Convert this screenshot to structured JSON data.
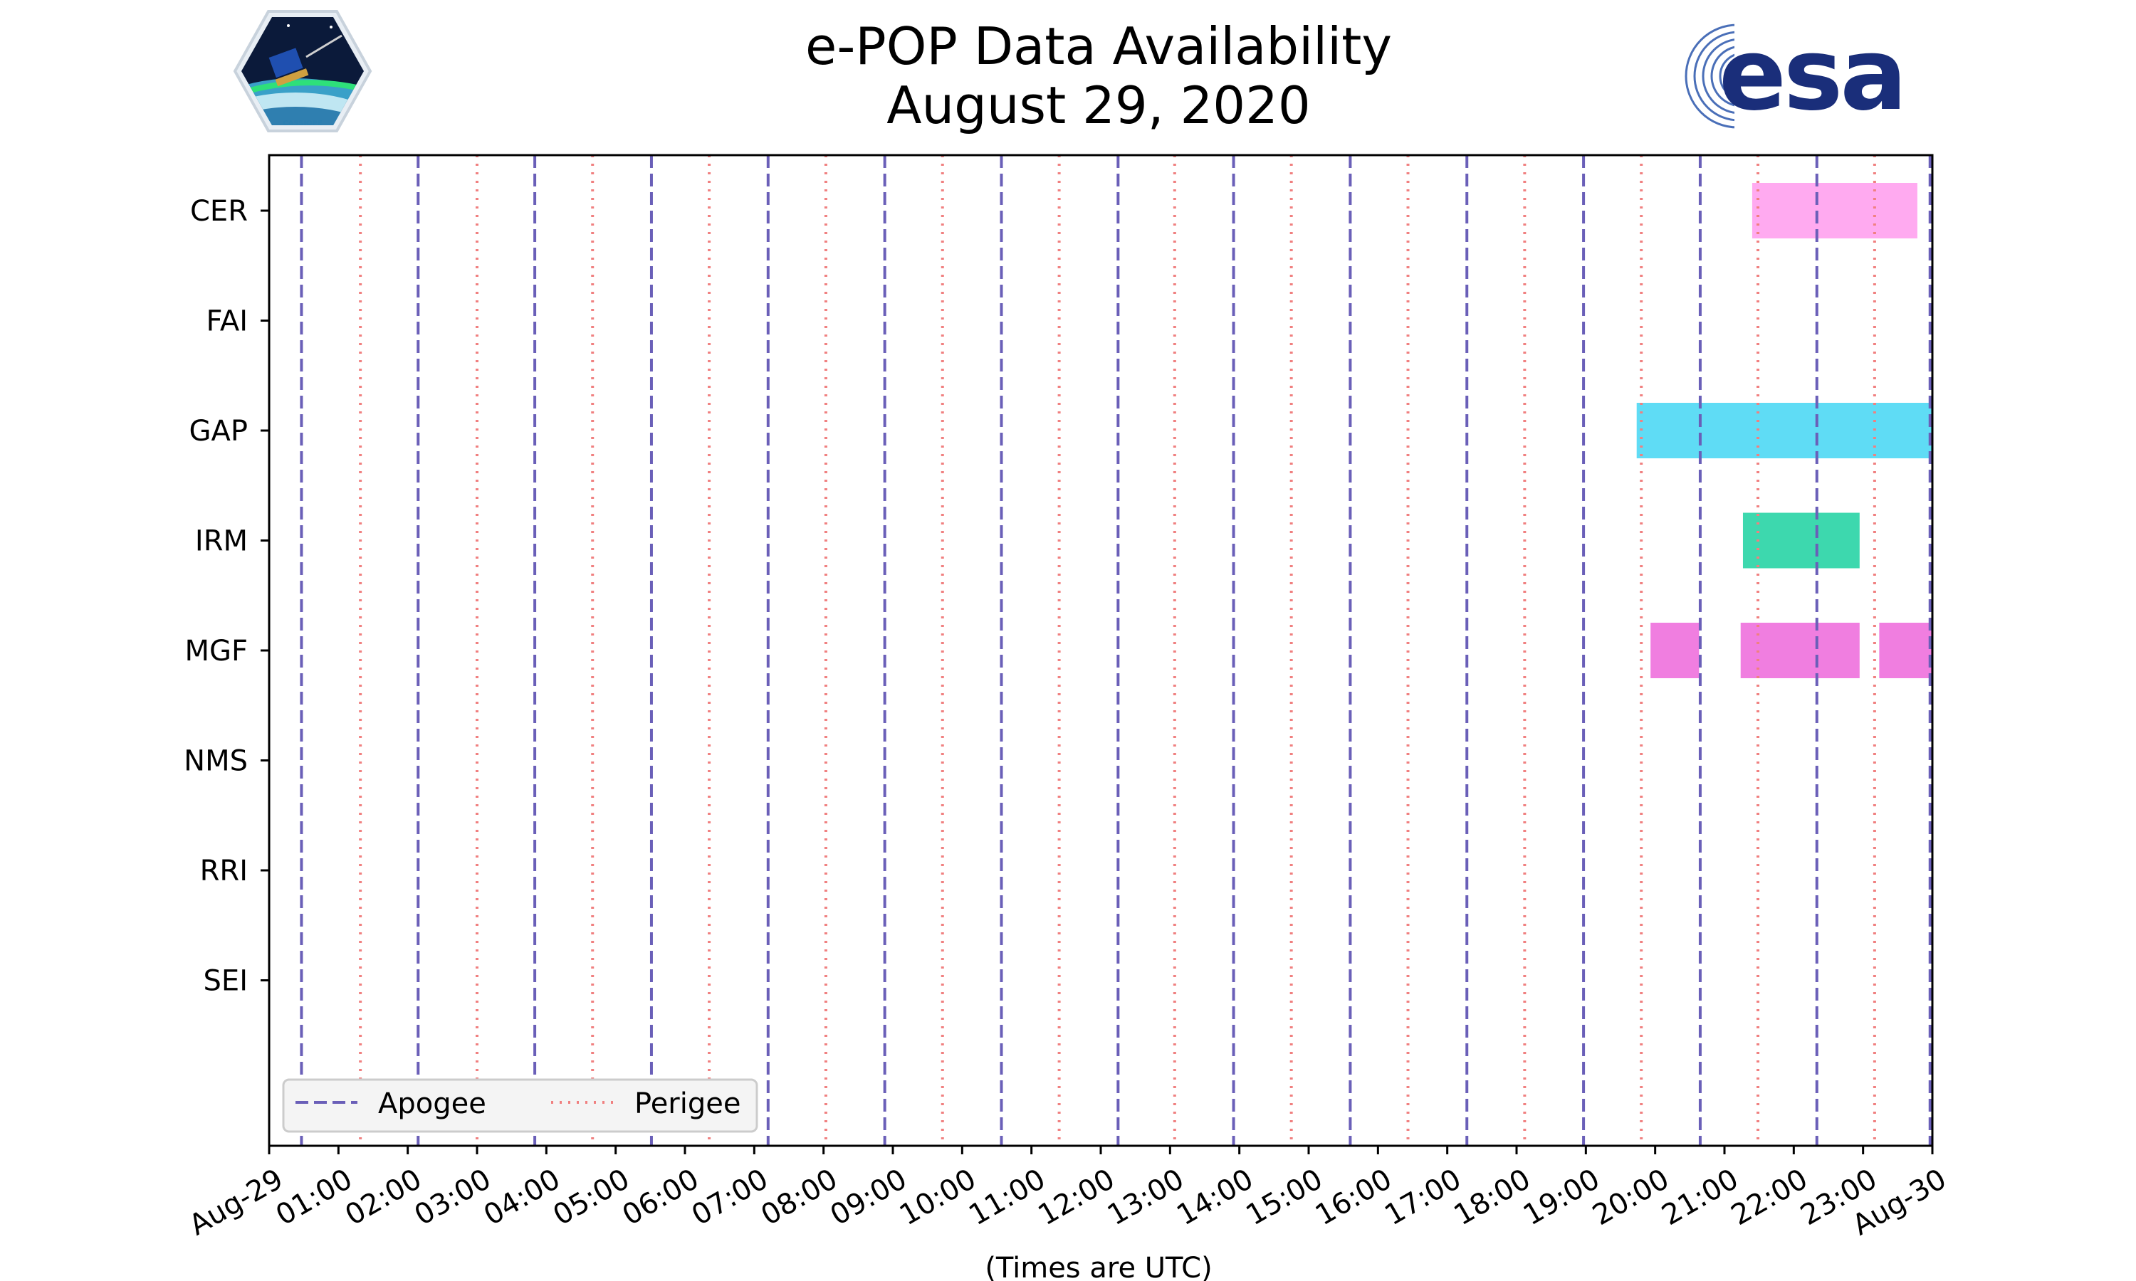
{
  "logos": {
    "left": {
      "name": "CASSIOPE",
      "label": "CASSIOPE"
    },
    "right": {
      "name": "esa",
      "label": "esa",
      "color": "#1a2e7a"
    }
  },
  "chart_data": {
    "type": "timeline",
    "title": "e-POP Data Availability",
    "subtitle": "August 29, 2020",
    "xlabel": "(Times are UTC)",
    "xlim_hours": [
      0,
      24
    ],
    "x_tick_labels": [
      "Aug-29",
      "01:00",
      "02:00",
      "03:00",
      "04:00",
      "05:00",
      "06:00",
      "07:00",
      "08:00",
      "09:00",
      "10:00",
      "11:00",
      "12:00",
      "13:00",
      "14:00",
      "15:00",
      "16:00",
      "17:00",
      "18:00",
      "19:00",
      "20:00",
      "21:00",
      "22:00",
      "23:00",
      "Aug-30"
    ],
    "categories": [
      "CER",
      "FAI",
      "GAP",
      "IRM",
      "MGF",
      "NMS",
      "RRI",
      "SEI"
    ],
    "grid": false,
    "legend": {
      "location": "lower-left",
      "entries": [
        {
          "label": "Apogee",
          "style": "dashed",
          "color": "#6a5fb8"
        },
        {
          "label": "Perigee",
          "style": "dotted",
          "color": "#f08080"
        }
      ]
    },
    "apogee_times": [
      "00:28",
      "02:09",
      "03:50",
      "05:31",
      "07:12",
      "08:53",
      "10:34",
      "12:15",
      "13:55",
      "15:36",
      "17:17",
      "18:58",
      "20:39",
      "22:20",
      "23:58"
    ],
    "perigee_times": [
      "01:19",
      "03:00",
      "04:40",
      "06:21",
      "08:02",
      "09:43",
      "11:24",
      "13:04",
      "14:45",
      "16:26",
      "18:07",
      "19:48",
      "21:29",
      "23:10"
    ],
    "series": [
      {
        "instrument": "CER",
        "color": "#ffaaf0",
        "intervals": [
          [
            "21:24",
            "23:47"
          ]
        ]
      },
      {
        "instrument": "FAI",
        "color": "#888888",
        "intervals": []
      },
      {
        "instrument": "GAP",
        "color": "#5fdcf5",
        "intervals": [
          [
            "19:44",
            "24:00"
          ]
        ]
      },
      {
        "instrument": "IRM",
        "color": "#3dd8ae",
        "intervals": [
          [
            "21:16",
            "22:57"
          ]
        ]
      },
      {
        "instrument": "MGF",
        "color": "#f07ee0",
        "intervals": [
          [
            "19:56",
            "20:38"
          ],
          [
            "21:14",
            "22:57"
          ],
          [
            "23:14",
            "24:00"
          ]
        ]
      },
      {
        "instrument": "NMS",
        "color": "#888888",
        "intervals": []
      },
      {
        "instrument": "RRI",
        "color": "#888888",
        "intervals": []
      },
      {
        "instrument": "SEI",
        "color": "#888888",
        "intervals": []
      }
    ]
  }
}
